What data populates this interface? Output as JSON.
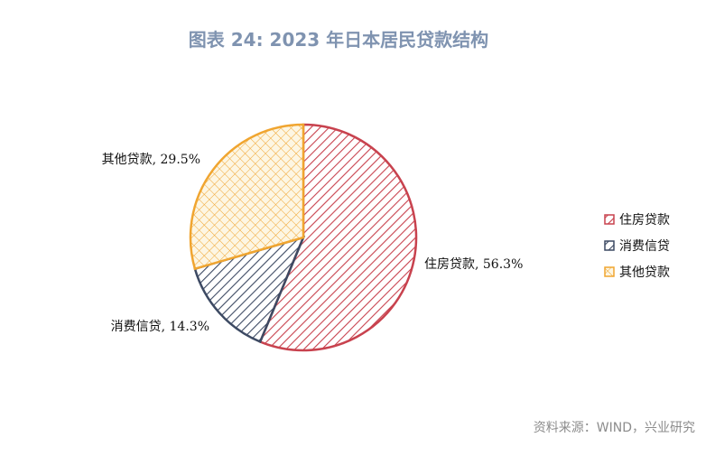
{
  "title": "图表 24: 2023 年日本居民贷款结构",
  "source": "资料来源：WIND，兴业研究",
  "chart_data": {
    "type": "pie",
    "title": "图表 24: 2023 年日本居民贷款结构",
    "start_angle_deg": 0,
    "direction": "clockwise",
    "legend_position": "right",
    "slices": [
      {
        "name": "住房贷款",
        "value": 56.3,
        "label": "住房贷款, 56.3%",
        "color": "#c8424e",
        "pattern": "diagonal-hatch"
      },
      {
        "name": "消费信贷",
        "value": 14.3,
        "label": "消费信贷, 14.3%",
        "color": "#3d4a63",
        "pattern": "diagonal-hatch"
      },
      {
        "name": "其他贷款",
        "value": 29.5,
        "label": "其他贷款, 29.5%",
        "color": "#f0a530",
        "pattern": "crosshatch"
      }
    ]
  }
}
